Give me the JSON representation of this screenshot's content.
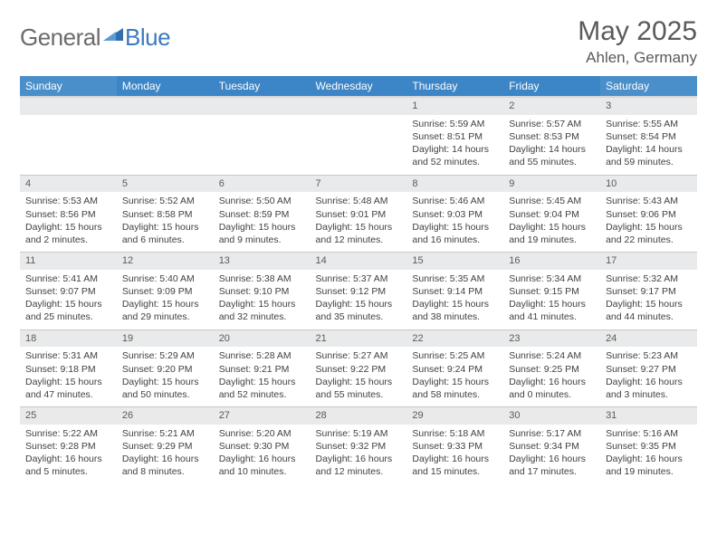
{
  "logo": {
    "word1": "General",
    "word2": "Blue",
    "icon_color": "#2f6fb0"
  },
  "header": {
    "month_title": "May 2025",
    "location": "Ahlen, Germany"
  },
  "colors": {
    "header_bg": "#3c85c6",
    "header_text": "#ffffff",
    "daynum_bg": "#e9eaeb",
    "text": "#414141",
    "title_text": "#5a5a5a"
  },
  "weekdays": [
    "Sunday",
    "Monday",
    "Tuesday",
    "Wednesday",
    "Thursday",
    "Friday",
    "Saturday"
  ],
  "weeks": [
    {
      "nums": [
        "",
        "",
        "",
        "",
        "1",
        "2",
        "3"
      ],
      "cells": [
        null,
        null,
        null,
        null,
        {
          "sunrise": "5:59 AM",
          "sunset": "8:51 PM",
          "daylight": "14 hours and 52 minutes."
        },
        {
          "sunrise": "5:57 AM",
          "sunset": "8:53 PM",
          "daylight": "14 hours and 55 minutes."
        },
        {
          "sunrise": "5:55 AM",
          "sunset": "8:54 PM",
          "daylight": "14 hours and 59 minutes."
        }
      ]
    },
    {
      "nums": [
        "4",
        "5",
        "6",
        "7",
        "8",
        "9",
        "10"
      ],
      "cells": [
        {
          "sunrise": "5:53 AM",
          "sunset": "8:56 PM",
          "daylight": "15 hours and 2 minutes."
        },
        {
          "sunrise": "5:52 AM",
          "sunset": "8:58 PM",
          "daylight": "15 hours and 6 minutes."
        },
        {
          "sunrise": "5:50 AM",
          "sunset": "8:59 PM",
          "daylight": "15 hours and 9 minutes."
        },
        {
          "sunrise": "5:48 AM",
          "sunset": "9:01 PM",
          "daylight": "15 hours and 12 minutes."
        },
        {
          "sunrise": "5:46 AM",
          "sunset": "9:03 PM",
          "daylight": "15 hours and 16 minutes."
        },
        {
          "sunrise": "5:45 AM",
          "sunset": "9:04 PM",
          "daylight": "15 hours and 19 minutes."
        },
        {
          "sunrise": "5:43 AM",
          "sunset": "9:06 PM",
          "daylight": "15 hours and 22 minutes."
        }
      ]
    },
    {
      "nums": [
        "11",
        "12",
        "13",
        "14",
        "15",
        "16",
        "17"
      ],
      "cells": [
        {
          "sunrise": "5:41 AM",
          "sunset": "9:07 PM",
          "daylight": "15 hours and 25 minutes."
        },
        {
          "sunrise": "5:40 AM",
          "sunset": "9:09 PM",
          "daylight": "15 hours and 29 minutes."
        },
        {
          "sunrise": "5:38 AM",
          "sunset": "9:10 PM",
          "daylight": "15 hours and 32 minutes."
        },
        {
          "sunrise": "5:37 AM",
          "sunset": "9:12 PM",
          "daylight": "15 hours and 35 minutes."
        },
        {
          "sunrise": "5:35 AM",
          "sunset": "9:14 PM",
          "daylight": "15 hours and 38 minutes."
        },
        {
          "sunrise": "5:34 AM",
          "sunset": "9:15 PM",
          "daylight": "15 hours and 41 minutes."
        },
        {
          "sunrise": "5:32 AM",
          "sunset": "9:17 PM",
          "daylight": "15 hours and 44 minutes."
        }
      ]
    },
    {
      "nums": [
        "18",
        "19",
        "20",
        "21",
        "22",
        "23",
        "24"
      ],
      "cells": [
        {
          "sunrise": "5:31 AM",
          "sunset": "9:18 PM",
          "daylight": "15 hours and 47 minutes."
        },
        {
          "sunrise": "5:29 AM",
          "sunset": "9:20 PM",
          "daylight": "15 hours and 50 minutes."
        },
        {
          "sunrise": "5:28 AM",
          "sunset": "9:21 PM",
          "daylight": "15 hours and 52 minutes."
        },
        {
          "sunrise": "5:27 AM",
          "sunset": "9:22 PM",
          "daylight": "15 hours and 55 minutes."
        },
        {
          "sunrise": "5:25 AM",
          "sunset": "9:24 PM",
          "daylight": "15 hours and 58 minutes."
        },
        {
          "sunrise": "5:24 AM",
          "sunset": "9:25 PM",
          "daylight": "16 hours and 0 minutes."
        },
        {
          "sunrise": "5:23 AM",
          "sunset": "9:27 PM",
          "daylight": "16 hours and 3 minutes."
        }
      ]
    },
    {
      "nums": [
        "25",
        "26",
        "27",
        "28",
        "29",
        "30",
        "31"
      ],
      "cells": [
        {
          "sunrise": "5:22 AM",
          "sunset": "9:28 PM",
          "daylight": "16 hours and 5 minutes."
        },
        {
          "sunrise": "5:21 AM",
          "sunset": "9:29 PM",
          "daylight": "16 hours and 8 minutes."
        },
        {
          "sunrise": "5:20 AM",
          "sunset": "9:30 PM",
          "daylight": "16 hours and 10 minutes."
        },
        {
          "sunrise": "5:19 AM",
          "sunset": "9:32 PM",
          "daylight": "16 hours and 12 minutes."
        },
        {
          "sunrise": "5:18 AM",
          "sunset": "9:33 PM",
          "daylight": "16 hours and 15 minutes."
        },
        {
          "sunrise": "5:17 AM",
          "sunset": "9:34 PM",
          "daylight": "16 hours and 17 minutes."
        },
        {
          "sunrise": "5:16 AM",
          "sunset": "9:35 PM",
          "daylight": "16 hours and 19 minutes."
        }
      ]
    }
  ],
  "labels": {
    "sunrise": "Sunrise: ",
    "sunset": "Sunset: ",
    "daylight": "Daylight: "
  }
}
